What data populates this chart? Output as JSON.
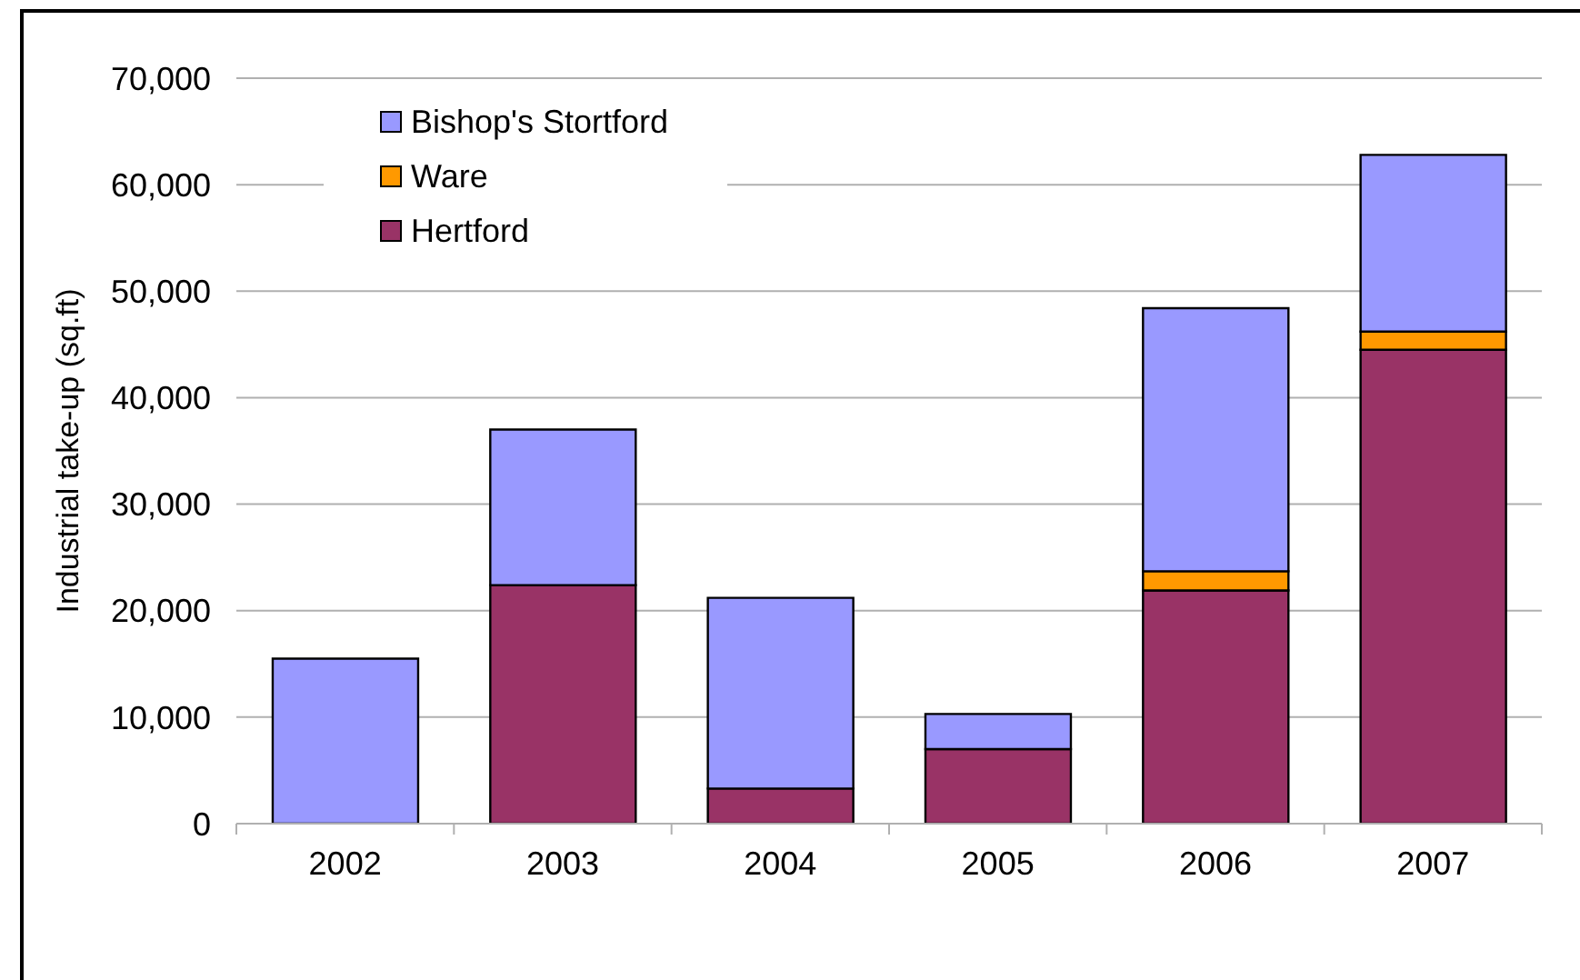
{
  "chart_data": {
    "type": "bar",
    "stacked": true,
    "ylabel": "Industrial take-up (sq.ft)",
    "categories": [
      "2002",
      "2003",
      "2004",
      "2005",
      "2006",
      "2007"
    ],
    "series": [
      {
        "name": "Hertford",
        "color": "#993366",
        "values": [
          0,
          22400,
          3300,
          7000,
          21900,
          44500
        ]
      },
      {
        "name": "Ware",
        "color": "#ff9900",
        "values": [
          0,
          0,
          0,
          0,
          1800,
          1700
        ]
      },
      {
        "name": "Bishop's Stortford",
        "color": "#9999ff",
        "values": [
          15500,
          14600,
          17900,
          3300,
          24700,
          16600
        ]
      }
    ],
    "ylim": [
      0,
      70000
    ],
    "yticks": [
      0,
      {
        "value": 10000,
        "label": "10,000"
      },
      {
        "value": 20000,
        "label": "20,000"
      },
      {
        "value": 30000,
        "label": "30,000"
      },
      {
        "value": 40000,
        "label": "40,000"
      },
      {
        "value": 50000,
        "label": "50,000"
      },
      {
        "value": 60000,
        "label": "60,000"
      },
      {
        "value": 70000,
        "label": "70,000"
      }
    ],
    "grid": "y",
    "legend": "top left"
  }
}
